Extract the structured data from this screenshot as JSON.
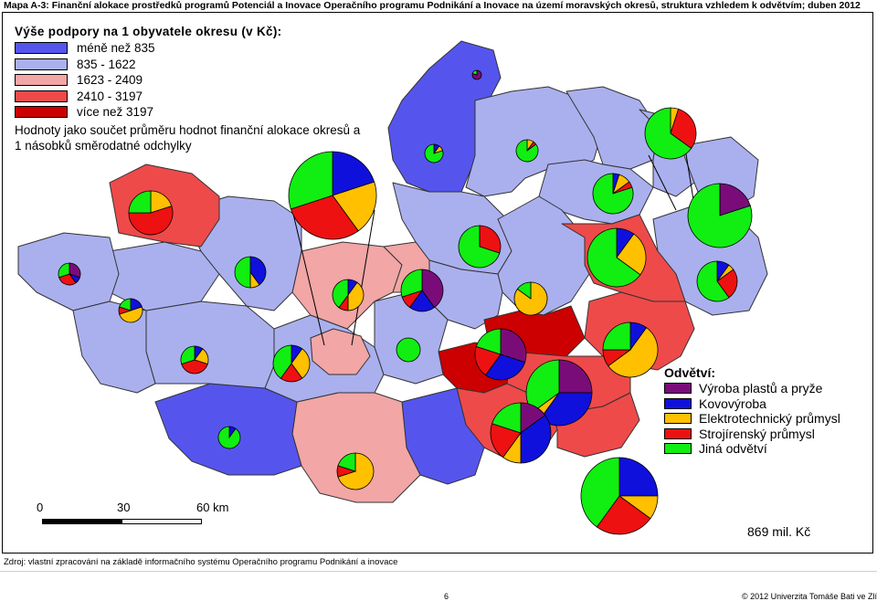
{
  "title": "Mapa A-3: Finanční alokace prostředků programů Potenciál a Inovace Operačního programu Podnikání a Inovace na území moravských okresů, struktura vzhledem k odvětvím; duben 2012",
  "support_legend": {
    "heading": "Výše podpory na 1 obyvatele okresu (v Kč):",
    "classes": [
      {
        "label": "méně než 835",
        "color": "#5555ee"
      },
      {
        "label": "835 - 1622",
        "color": "#aab0ee"
      },
      {
        "label": "1623 - 2409",
        "color": "#f2a6a6"
      },
      {
        "label": "2410 - 3197",
        "color": "#ee4a4a"
      },
      {
        "label": "více než 3197",
        "color": "#cc0000"
      }
    ],
    "note": "Hodnoty jako součet průměru hodnot finanční alokace okresů a 1 násobků směrodatné odchylky"
  },
  "sector_legend": {
    "heading": "Odvětví:",
    "items": [
      {
        "label": "Výroba plastů a pryže",
        "color": "#7a0c7a"
      },
      {
        "label": "Kovovýroba",
        "color": "#1010dd"
      },
      {
        "label": "Elektrotechnický průmysl",
        "color": "#ffc000"
      },
      {
        "label": "Strojírenský průmysl",
        "color": "#ee1111"
      },
      {
        "label": "Jiná odvětví",
        "color": "#11ee11"
      }
    ]
  },
  "scale": {
    "labels": [
      "0",
      "30",
      "60 km"
    ]
  },
  "pie_scale_label": "869 mil. Kč",
  "source": "Zdroj: vlastní zpracování na základě informačního systému Operačního programu Podnikání a inovace",
  "page_number": "6",
  "copyright": "© 2012 Univerzita Tomáše Bati ve Zlíně"
}
